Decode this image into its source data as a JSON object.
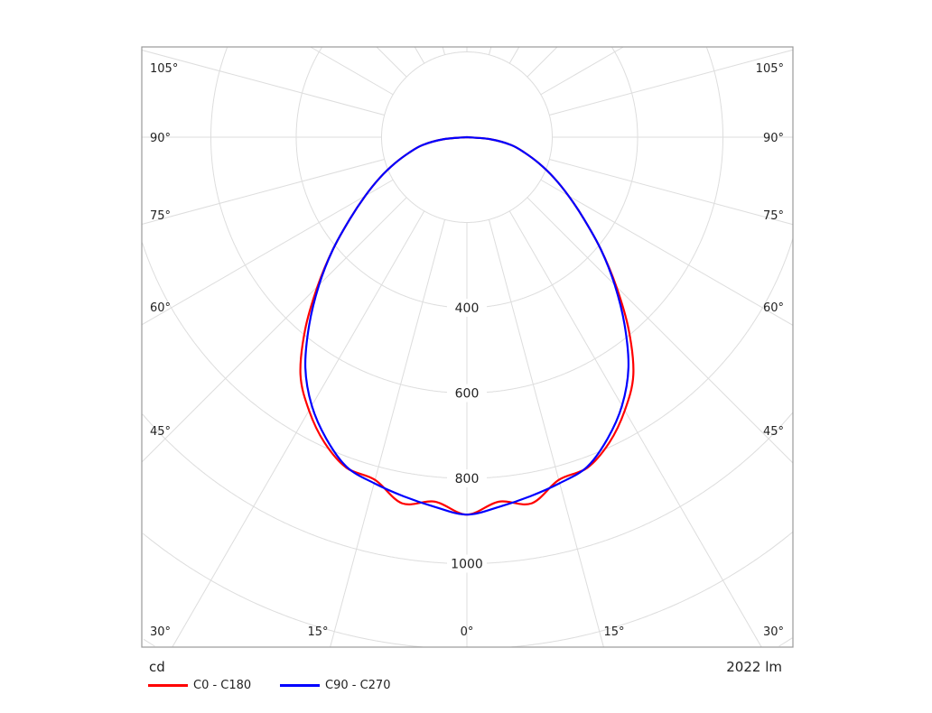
{
  "chart_data": {
    "type": "polar",
    "unit_label": "cd",
    "flux_label": "2022 lm",
    "radial_ticks": [
      400,
      600,
      800,
      1000
    ],
    "rings": [
      200,
      400,
      600,
      800,
      1000,
      1200,
      1400
    ],
    "angle_labels_left": [
      "105°",
      "90°",
      "75°",
      "60°",
      "45°",
      "30°"
    ],
    "angle_labels_bottom": [
      "15°",
      "0°",
      "15°"
    ],
    "angle_labels_right": [
      "105°",
      "90°",
      "75°",
      "60°",
      "45°",
      "30°"
    ],
    "angles_deg": [
      0,
      5,
      10,
      15,
      20,
      25,
      30,
      35,
      40,
      45,
      50,
      55,
      60,
      65,
      70,
      75,
      80,
      85,
      90
    ],
    "series": [
      {
        "name": "C0 - C180",
        "color": "#ff0000",
        "values": [
          885,
          858,
          872,
          832,
          825,
          790,
          740,
          680,
          590,
          495,
          410,
          335,
          275,
          225,
          180,
          140,
          105,
          55,
          0
        ]
      },
      {
        "name": "C90 - C270",
        "color": "#0000ff",
        "values": [
          885,
          870,
          855,
          840,
          823,
          780,
          727,
          660,
          575,
          490,
          410,
          335,
          275,
          225,
          180,
          140,
          105,
          55,
          0
        ]
      }
    ]
  }
}
